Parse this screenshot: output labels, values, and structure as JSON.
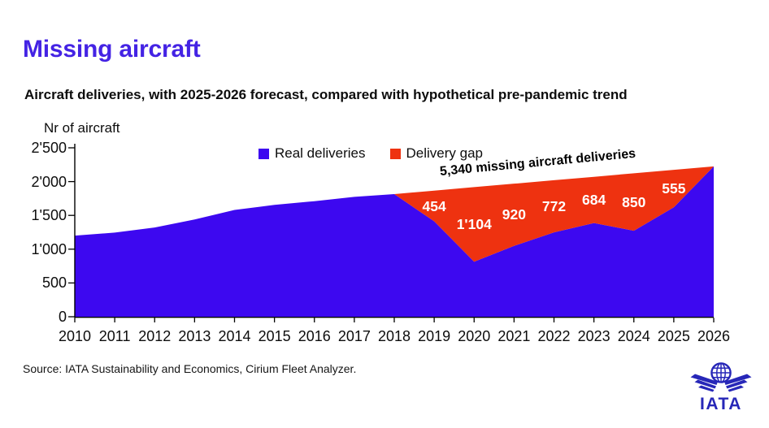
{
  "header": {
    "title": "Missing aircraft",
    "subtitle": "Aircraft deliveries, with 2025-2026 forecast, compared with hypothetical pre-pandemic trend"
  },
  "legend": [
    {
      "label": "Real deliveries",
      "color": "#3d08f0"
    },
    {
      "label": "Delivery gap",
      "color": "#ee3210"
    }
  ],
  "colors": {
    "title": "#4423e4",
    "real_area": "#3d08f0",
    "gap_area": "#ee3210",
    "logo": "#2727b8",
    "axis": "#000000",
    "data_label": "#ffffff"
  },
  "chart_data": {
    "type": "area",
    "title": "Missing aircraft",
    "y_axis_title": "Nr of aircraft",
    "annotation": "5,340 missing aircraft deliveries",
    "x": [
      2010,
      2011,
      2012,
      2013,
      2014,
      2015,
      2016,
      2017,
      2018,
      2019,
      2020,
      2021,
      2022,
      2023,
      2024,
      2025,
      2026
    ],
    "series": [
      {
        "name": "Real deliveries",
        "color": "#3d08f0",
        "values": [
          1200,
          1245,
          1320,
          1440,
          1580,
          1655,
          1710,
          1775,
          1815,
          1412,
          814,
          1049,
          1248,
          1387,
          1273,
          1619,
          2225
        ]
      },
      {
        "name": "Delivery gap",
        "color": "#ee3210",
        "values": [
          0,
          0,
          0,
          0,
          0,
          0,
          0,
          0,
          0,
          454,
          1104,
          920,
          772,
          684,
          850,
          555,
          0
        ]
      }
    ],
    "gap_labels": [
      {
        "year": 2019,
        "label": "454"
      },
      {
        "year": 2020,
        "label": "1'104"
      },
      {
        "year": 2021,
        "label": "920"
      },
      {
        "year": 2022,
        "label": "772"
      },
      {
        "year": 2023,
        "label": "684"
      },
      {
        "year": 2024,
        "label": "850"
      },
      {
        "year": 2025,
        "label": "555"
      }
    ],
    "y_ticks": [
      {
        "value": 0,
        "label": "0"
      },
      {
        "value": 500,
        "label": "500"
      },
      {
        "value": 1000,
        "label": "1'000"
      },
      {
        "value": 1500,
        "label": "1'500"
      },
      {
        "value": 2000,
        "label": "2'000"
      },
      {
        "value": 2500,
        "label": "2'500"
      }
    ],
    "ylim": [
      0,
      2500
    ],
    "grid": false,
    "legend_position": "top"
  },
  "footer": {
    "source": "Source: IATA Sustainability and Economics, Cirium Fleet Analyzer.",
    "logo_text": "IATA"
  }
}
